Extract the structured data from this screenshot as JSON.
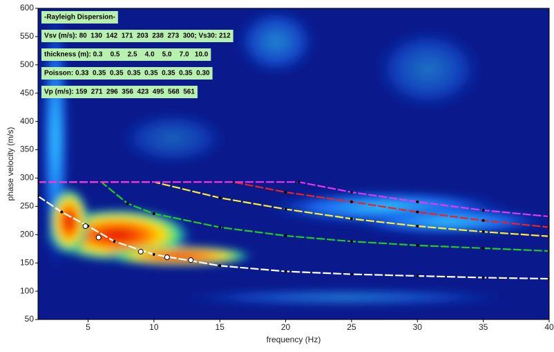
{
  "chart_data": {
    "type": "line",
    "xlabel": "frequency (Hz)",
    "ylabel": "phase velocity (m/s)",
    "xlim": [
      1.2,
      40
    ],
    "ylim": [
      50,
      600
    ],
    "xticks": [
      5,
      10,
      15,
      20,
      25,
      30,
      35,
      40
    ],
    "yticks": [
      50,
      100,
      150,
      200,
      250,
      300,
      350,
      400,
      450,
      500,
      550,
      600
    ],
    "annotations": [
      "-Rayleigh Dispersion-",
      "Vsv (m/s): 80  130  142  171  203  238  273  300; Vs30: 212",
      "thickness (m): 0.3    0.5    2.5    4.0    5.0    7.0   10.0",
      "Poisson: 0.33  0.35  0.35  0.35  0.35  0.35  0.35  0.30",
      "Vp (m/s): 159  271  296  356  423  495  568  561"
    ],
    "series": [
      {
        "color": "#ffffff",
        "x": [
          1.2,
          3,
          5,
          7,
          10,
          15,
          20,
          25,
          30,
          35,
          40
        ],
        "values": [
          268,
          240,
          215,
          188,
          165,
          145,
          135,
          130,
          127,
          124,
          122
        ]
      },
      {
        "color": "#22cc22",
        "x": [
          1.2,
          6,
          8,
          10,
          15,
          20,
          25,
          30,
          35,
          40
        ],
        "values": [
          293,
          293,
          255,
          237,
          213,
          198,
          188,
          181,
          176,
          171
        ]
      },
      {
        "color": "#ffee33",
        "x": [
          1.2,
          10,
          15,
          20,
          25,
          30,
          35,
          40
        ],
        "values": [
          293,
          293,
          265,
          245,
          228,
          215,
          205,
          197
        ]
      },
      {
        "color": "#ee2222",
        "x": [
          1.2,
          16,
          20,
          25,
          30,
          35,
          40
        ],
        "values": [
          293,
          293,
          275,
          258,
          240,
          225,
          213
        ]
      },
      {
        "color": "#ee33ee",
        "x": [
          1.2,
          21,
          25,
          30,
          35,
          40
        ],
        "values": [
          293,
          293,
          275,
          258,
          243,
          232
        ]
      },
      {
        "color": "#ffffff",
        "style": "points",
        "x": [
          4.8,
          5.8,
          9,
          11,
          12.8
        ],
        "values": [
          215,
          195,
          170,
          160,
          155
        ]
      }
    ]
  }
}
